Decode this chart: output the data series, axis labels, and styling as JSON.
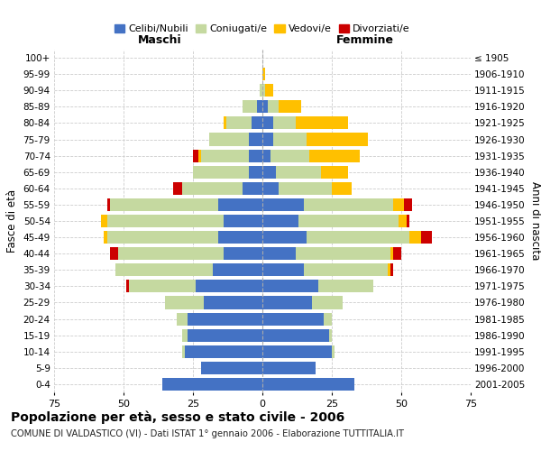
{
  "age_groups": [
    "0-4",
    "5-9",
    "10-14",
    "15-19",
    "20-24",
    "25-29",
    "30-34",
    "35-39",
    "40-44",
    "45-49",
    "50-54",
    "55-59",
    "60-64",
    "65-69",
    "70-74",
    "75-79",
    "80-84",
    "85-89",
    "90-94",
    "95-99",
    "100+"
  ],
  "birth_years": [
    "2001-2005",
    "1996-2000",
    "1991-1995",
    "1986-1990",
    "1981-1985",
    "1976-1980",
    "1971-1975",
    "1966-1970",
    "1961-1965",
    "1956-1960",
    "1951-1955",
    "1946-1950",
    "1941-1945",
    "1936-1940",
    "1931-1935",
    "1926-1930",
    "1921-1925",
    "1916-1920",
    "1911-1915",
    "1906-1910",
    "≤ 1905"
  ],
  "male": {
    "celibe": [
      36,
      22,
      28,
      27,
      27,
      21,
      24,
      18,
      14,
      16,
      14,
      16,
      7,
      5,
      5,
      5,
      4,
      2,
      0,
      0,
      0
    ],
    "coniugato": [
      0,
      0,
      1,
      2,
      4,
      14,
      24,
      35,
      38,
      40,
      42,
      39,
      22,
      20,
      17,
      14,
      9,
      5,
      1,
      0,
      0
    ],
    "vedovo": [
      0,
      0,
      0,
      0,
      0,
      0,
      0,
      0,
      0,
      1,
      2,
      0,
      0,
      0,
      1,
      0,
      1,
      0,
      0,
      0,
      0
    ],
    "divorziato": [
      0,
      0,
      0,
      0,
      0,
      0,
      1,
      0,
      3,
      0,
      0,
      1,
      3,
      0,
      2,
      0,
      0,
      0,
      0,
      0,
      0
    ]
  },
  "female": {
    "nubile": [
      33,
      19,
      25,
      24,
      22,
      18,
      20,
      15,
      12,
      16,
      13,
      15,
      6,
      5,
      3,
      4,
      4,
      2,
      0,
      0,
      0
    ],
    "coniugata": [
      0,
      0,
      1,
      1,
      3,
      11,
      20,
      30,
      34,
      37,
      36,
      32,
      19,
      16,
      14,
      12,
      8,
      4,
      1,
      0,
      0
    ],
    "vedova": [
      0,
      0,
      0,
      0,
      0,
      0,
      0,
      1,
      1,
      4,
      3,
      4,
      7,
      10,
      18,
      22,
      19,
      8,
      3,
      1,
      0
    ],
    "divorziata": [
      0,
      0,
      0,
      0,
      0,
      0,
      0,
      1,
      3,
      4,
      1,
      3,
      0,
      0,
      0,
      0,
      0,
      0,
      0,
      0,
      0
    ]
  },
  "colors": {
    "celibe": "#4472c4",
    "coniugato": "#c5d9a0",
    "vedovo": "#ffc000",
    "divorziato": "#cc0000"
  },
  "xlim": 75,
  "title": "Popolazione per età, sesso e stato civile - 2006",
  "subtitle": "COMUNE DI VALDASTICO (VI) - Dati ISTAT 1° gennaio 2006 - Elaborazione TUTTITALIA.IT",
  "ylabel_left": "Fasce di età",
  "ylabel_right": "Anni di nascita",
  "xlabel_left": "Maschi",
  "xlabel_right": "Femmine",
  "legend_labels": [
    "Celibi/Nubili",
    "Coniugati/e",
    "Vedovi/e",
    "Divorziati/e"
  ]
}
